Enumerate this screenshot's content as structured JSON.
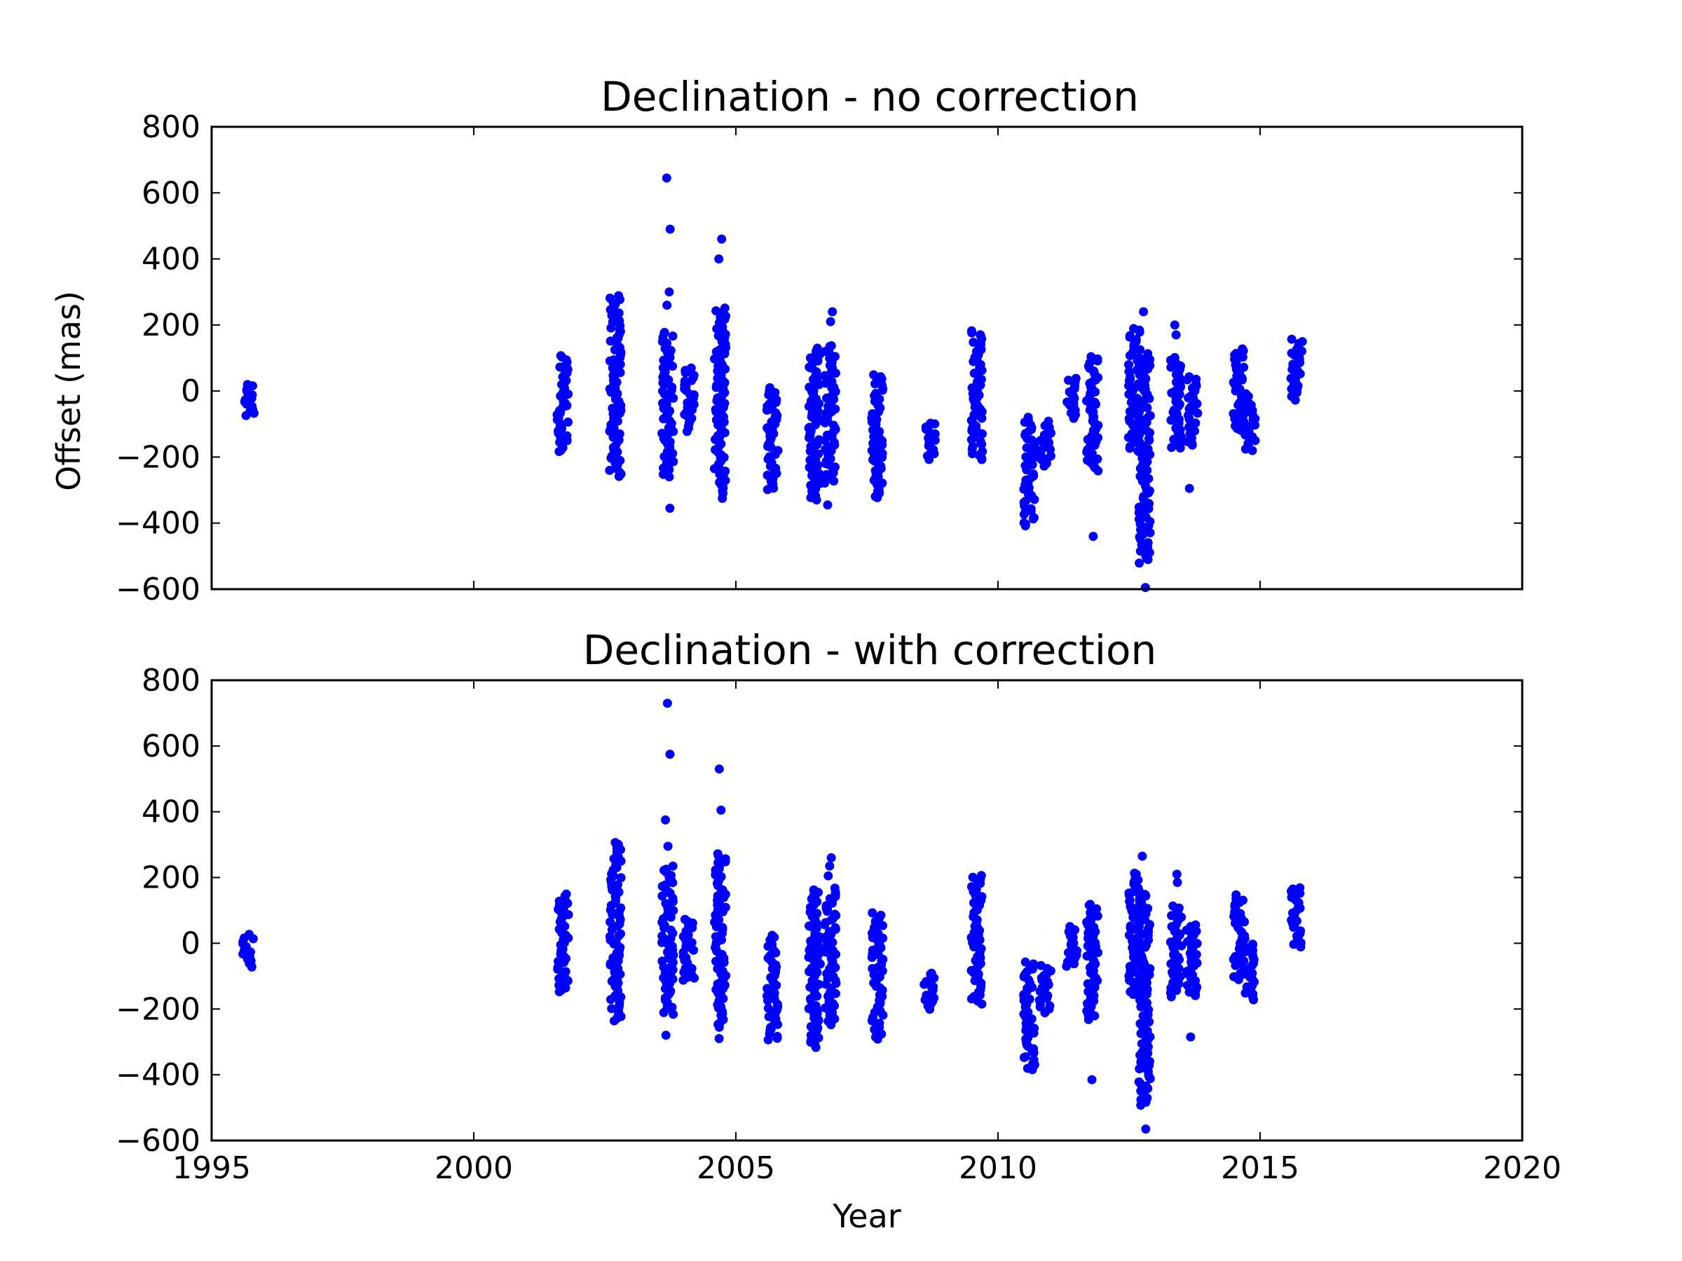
{
  "chart_data": [
    {
      "type": "scatter",
      "title": "Declination - no correction",
      "xlabel": "",
      "ylabel": "Offset (mas)",
      "xlim": [
        1995,
        2020
      ],
      "ylim": [
        -600,
        800
      ],
      "xticks": [
        1995,
        2000,
        2005,
        2010,
        2015,
        2020
      ],
      "xtick_labels_shown": false,
      "yticks": [
        -600,
        -400,
        -200,
        0,
        200,
        400,
        600,
        800
      ],
      "ytick_labels": [
        "−600",
        "−400",
        "−200",
        "0",
        "200",
        "400",
        "600",
        "800"
      ],
      "grid": false,
      "marker_color": "#0000ff",
      "series": [
        {
          "clusters": [
            {
              "x": 1995.7,
              "lo": -75,
              "hi": 20
            },
            {
              "x": 2001.7,
              "lo": -185,
              "hi": 110
            },
            {
              "x": 2002.7,
              "lo": -260,
              "hi": 290
            },
            {
              "x": 2003.7,
              "lo": -260,
              "hi": 180,
              "extra": [
                -355,
                300,
                260,
                490,
                645
              ]
            },
            {
              "x": 2004.1,
              "lo": -120,
              "hi": 70
            },
            {
              "x": 2004.7,
              "lo": -310,
              "hi": 250,
              "extra": [
                -325,
                400,
                460
              ]
            },
            {
              "x": 2005.7,
              "lo": -300,
              "hi": 10
            },
            {
              "x": 2006.5,
              "lo": -330,
              "hi": 130
            },
            {
              "x": 2006.8,
              "lo": -280,
              "hi": 140,
              "extra": [
                -345,
                210,
                240
              ]
            },
            {
              "x": 2007.7,
              "lo": -325,
              "hi": 50
            },
            {
              "x": 2008.7,
              "lo": -205,
              "hi": -95
            },
            {
              "x": 2009.6,
              "lo": -210,
              "hi": 185
            },
            {
              "x": 2010.6,
              "lo": -410,
              "hi": -80
            },
            {
              "x": 2010.9,
              "lo": -225,
              "hi": -90
            },
            {
              "x": 2011.4,
              "lo": -80,
              "hi": 40
            },
            {
              "x": 2011.8,
              "lo": -240,
              "hi": 105,
              "extra": [
                -440
              ]
            },
            {
              "x": 2012.6,
              "lo": -180,
              "hi": 190
            },
            {
              "x": 2012.8,
              "lo": -520,
              "hi": 110,
              "extra": [
                -595,
                240
              ]
            },
            {
              "x": 2013.4,
              "lo": -175,
              "hi": 100,
              "extra": [
                170,
                200
              ]
            },
            {
              "x": 2013.7,
              "lo": -165,
              "hi": 45,
              "extra": [
                -295
              ]
            },
            {
              "x": 2014.6,
              "lo": -120,
              "hi": 130
            },
            {
              "x": 2014.8,
              "lo": -180,
              "hi": -10
            },
            {
              "x": 2015.7,
              "lo": -25,
              "hi": 155
            }
          ]
        }
      ]
    },
    {
      "type": "scatter",
      "title": "Declination - with correction",
      "xlabel": "Year",
      "ylabel": "",
      "xlim": [
        1995,
        2020
      ],
      "ylim": [
        -600,
        800
      ],
      "xticks": [
        1995,
        2000,
        2005,
        2010,
        2015,
        2020
      ],
      "xtick_labels": [
        "1995",
        "2000",
        "2005",
        "2010",
        "2015",
        "2020"
      ],
      "yticks": [
        -600,
        -400,
        -200,
        0,
        200,
        400,
        600,
        800
      ],
      "ytick_labels": [
        "−600",
        "−400",
        "−200",
        "0",
        "200",
        "400",
        "600",
        "800"
      ],
      "grid": false,
      "marker_color": "#0000ff",
      "series": [
        {
          "clusters": [
            {
              "x": 1995.7,
              "lo": -75,
              "hi": 25
            },
            {
              "x": 2001.7,
              "lo": -150,
              "hi": 150
            },
            {
              "x": 2002.7,
              "lo": -235,
              "hi": 305
            },
            {
              "x": 2003.7,
              "lo": -215,
              "hi": 235,
              "extra": [
                -280,
                295,
                375,
                575,
                730
              ]
            },
            {
              "x": 2004.1,
              "lo": -115,
              "hi": 75
            },
            {
              "x": 2004.7,
              "lo": -255,
              "hi": 270,
              "extra": [
                -290,
                405,
                530
              ]
            },
            {
              "x": 2005.7,
              "lo": -295,
              "hi": 25
            },
            {
              "x": 2006.5,
              "lo": -315,
              "hi": 160
            },
            {
              "x": 2006.8,
              "lo": -245,
              "hi": 165,
              "extra": [
                205,
                235,
                260
              ]
            },
            {
              "x": 2007.7,
              "lo": -290,
              "hi": 90
            },
            {
              "x": 2008.7,
              "lo": -200,
              "hi": -90
            },
            {
              "x": 2009.6,
              "lo": -185,
              "hi": 205
            },
            {
              "x": 2010.6,
              "lo": -385,
              "hi": -55
            },
            {
              "x": 2010.9,
              "lo": -210,
              "hi": -70
            },
            {
              "x": 2011.4,
              "lo": -70,
              "hi": 50
            },
            {
              "x": 2011.8,
              "lo": -230,
              "hi": 120,
              "extra": [
                -415
              ]
            },
            {
              "x": 2012.6,
              "lo": -160,
              "hi": 215
            },
            {
              "x": 2012.8,
              "lo": -490,
              "hi": 155,
              "extra": [
                -565,
                265
              ]
            },
            {
              "x": 2013.4,
              "lo": -160,
              "hi": 115,
              "extra": [
                185,
                210
              ]
            },
            {
              "x": 2013.7,
              "lo": -160,
              "hi": 55,
              "extra": [
                -285
              ]
            },
            {
              "x": 2014.6,
              "lo": -110,
              "hi": 145
            },
            {
              "x": 2014.8,
              "lo": -170,
              "hi": 0
            },
            {
              "x": 2015.7,
              "lo": -10,
              "hi": 170
            }
          ]
        }
      ]
    }
  ]
}
